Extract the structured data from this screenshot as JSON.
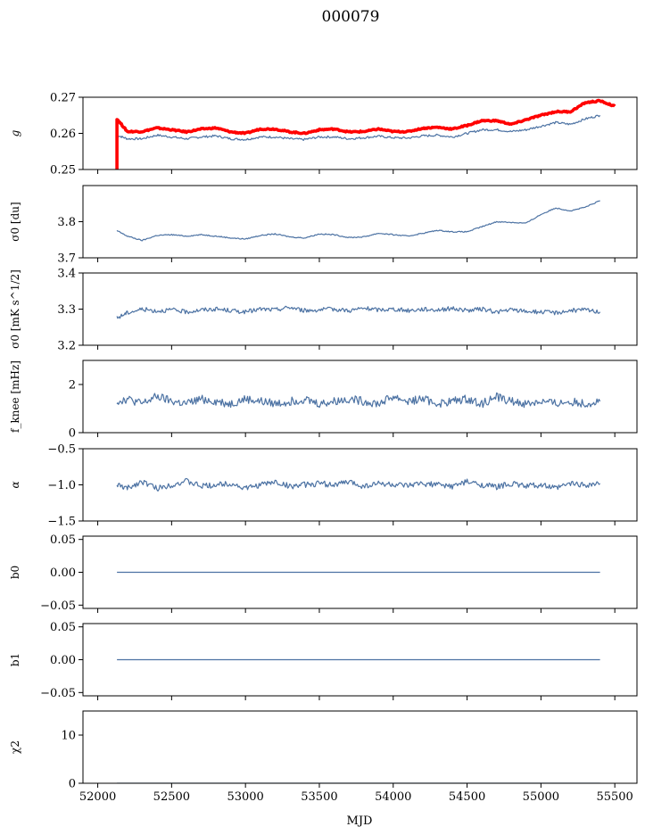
{
  "title": "000079",
  "colors": {
    "series": "#4c72a3",
    "model": "#ff0000",
    "axis": "#000000"
  },
  "chart_data": [
    {
      "type": "line",
      "ylabel": "g",
      "ylim": [
        0.25,
        0.27
      ],
      "yticks": [
        0.25,
        0.26,
        0.27
      ],
      "ytick_labels": [
        "0.25",
        "0.26",
        "0.27"
      ],
      "xlim": [
        51900,
        55650
      ],
      "series": [
        {
          "x": [
            52130,
            52200,
            52300,
            52400,
            52500,
            52600,
            52700,
            52800,
            52900,
            53000,
            53100,
            53200,
            53300,
            53400,
            53500,
            53600,
            53700,
            53800,
            53900,
            54000,
            54100,
            54200,
            54300,
            54400,
            54500,
            54600,
            54700,
            54800,
            54900,
            55000,
            55100,
            55200,
            55300,
            55400
          ],
          "y": [
            0.2595,
            0.2585,
            0.2585,
            0.2595,
            0.259,
            0.2585,
            0.259,
            0.2593,
            0.2585,
            0.2583,
            0.259,
            0.259,
            0.2585,
            0.2583,
            0.259,
            0.259,
            0.2585,
            0.2588,
            0.2592,
            0.2588,
            0.2587,
            0.2593,
            0.2595,
            0.259,
            0.26,
            0.261,
            0.261,
            0.2605,
            0.261,
            0.262,
            0.263,
            0.2625,
            0.264,
            0.265
          ]
        },
        {
          "x": [
            52130,
            52200,
            52300,
            52400,
            52500,
            52600,
            52700,
            52800,
            52900,
            53000,
            53100,
            53200,
            53300,
            53400,
            53500,
            53600,
            53700,
            53800,
            53900,
            54000,
            54100,
            54200,
            54300,
            54400,
            54500,
            54600,
            54700,
            54800,
            54900,
            55000,
            55100,
            55200,
            55300,
            55400,
            55500
          ],
          "y": [
            0.264,
            0.2605,
            0.2605,
            0.2615,
            0.261,
            0.2604,
            0.2612,
            0.2615,
            0.2604,
            0.26,
            0.2612,
            0.2612,
            0.2604,
            0.26,
            0.261,
            0.2612,
            0.2604,
            0.2605,
            0.2612,
            0.2605,
            0.2605,
            0.2614,
            0.2617,
            0.2612,
            0.2622,
            0.2635,
            0.2635,
            0.2625,
            0.2638,
            0.265,
            0.266,
            0.266,
            0.2685,
            0.269,
            0.2675
          ]
        }
      ]
    },
    {
      "type": "line",
      "ylabel": "σ0 [du]",
      "ylim": [
        3.7,
        3.9
      ],
      "yticks": [
        3.7,
        3.8
      ],
      "ytick_labels": [
        "3.7",
        "3.8"
      ],
      "xlim": [
        51900,
        55650
      ],
      "series": [
        {
          "x": [
            52130,
            52200,
            52300,
            52400,
            52500,
            52600,
            52700,
            52800,
            52900,
            53000,
            53100,
            53200,
            53300,
            53400,
            53500,
            53600,
            53700,
            53800,
            53900,
            54000,
            54100,
            54200,
            54300,
            54400,
            54500,
            54600,
            54700,
            54800,
            54900,
            55000,
            55100,
            55200,
            55300,
            55400
          ],
          "y": [
            3.775,
            3.76,
            3.748,
            3.762,
            3.764,
            3.76,
            3.764,
            3.76,
            3.755,
            3.752,
            3.762,
            3.766,
            3.758,
            3.755,
            3.766,
            3.764,
            3.756,
            3.758,
            3.768,
            3.764,
            3.76,
            3.768,
            3.776,
            3.772,
            3.772,
            3.786,
            3.8,
            3.798,
            3.796,
            3.82,
            3.838,
            3.83,
            3.84,
            3.858
          ]
        }
      ]
    },
    {
      "type": "line",
      "ylabel": "σ0 [mK s^1/2]",
      "ylim": [
        3.2,
        3.4
      ],
      "yticks": [
        3.2,
        3.3,
        3.4
      ],
      "ytick_labels": [
        "3.2",
        "3.3",
        "3.4"
      ],
      "xlim": [
        51900,
        55650
      ],
      "series": [
        {
          "x": [
            52130,
            52200,
            52300,
            52400,
            52500,
            52600,
            52700,
            52800,
            52900,
            53000,
            53100,
            53200,
            53300,
            53400,
            53500,
            53600,
            53700,
            53800,
            53900,
            54000,
            54100,
            54200,
            54300,
            54400,
            54500,
            54600,
            54700,
            54800,
            54900,
            55000,
            55100,
            55200,
            55300,
            55400
          ],
          "y": [
            3.275,
            3.29,
            3.3,
            3.295,
            3.298,
            3.292,
            3.298,
            3.3,
            3.296,
            3.292,
            3.3,
            3.298,
            3.305,
            3.296,
            3.298,
            3.3,
            3.296,
            3.302,
            3.298,
            3.3,
            3.296,
            3.3,
            3.298,
            3.302,
            3.296,
            3.3,
            3.292,
            3.298,
            3.294,
            3.292,
            3.29,
            3.296,
            3.298,
            3.292
          ]
        }
      ]
    },
    {
      "type": "line",
      "ylabel": "f_knee [mHz]",
      "ylim": [
        0,
        3
      ],
      "yticks": [
        0,
        2
      ],
      "ytick_labels": [
        "0",
        "2"
      ],
      "xlim": [
        51900,
        55650
      ],
      "series": [
        {
          "x": [
            52130,
            52200,
            52300,
            52400,
            52500,
            52600,
            52700,
            52800,
            52900,
            53000,
            53100,
            53200,
            53300,
            53400,
            53500,
            53600,
            53700,
            53800,
            53900,
            54000,
            54100,
            54200,
            54300,
            54400,
            54500,
            54600,
            54700,
            54800,
            54900,
            55000,
            55100,
            55200,
            55300,
            55400
          ],
          "y": [
            1.3,
            1.4,
            1.2,
            1.5,
            1.3,
            1.2,
            1.4,
            1.3,
            1.2,
            1.4,
            1.3,
            1.2,
            1.3,
            1.4,
            1.2,
            1.3,
            1.4,
            1.3,
            1.2,
            1.5,
            1.3,
            1.4,
            1.2,
            1.3,
            1.4,
            1.2,
            1.5,
            1.3,
            1.2,
            1.3,
            1.2,
            1.3,
            1.2,
            1.3
          ]
        }
      ]
    },
    {
      "type": "line",
      "ylabel": "α",
      "ylim": [
        -1.5,
        -0.5
      ],
      "yticks": [
        -1.5,
        -1.0,
        -0.5
      ],
      "ytick_labels": [
        "−1.5",
        "−1.0",
        "−0.5"
      ],
      "xlim": [
        51900,
        55650
      ],
      "series": [
        {
          "x": [
            52130,
            52200,
            52300,
            52400,
            52500,
            52600,
            52700,
            52800,
            52900,
            53000,
            53100,
            53200,
            53300,
            53400,
            53500,
            53600,
            53700,
            53800,
            53900,
            54000,
            54100,
            54200,
            54300,
            54400,
            54500,
            54600,
            54700,
            54800,
            54900,
            55000,
            55100,
            55200,
            55300,
            55400
          ],
          "y": [
            -1.0,
            -1.05,
            -0.95,
            -1.05,
            -1.0,
            -0.95,
            -1.02,
            -1.0,
            -0.98,
            -1.05,
            -1.0,
            -0.96,
            -1.02,
            -1.0,
            -0.98,
            -1.0,
            -0.96,
            -1.02,
            -0.98,
            -1.0,
            -1.02,
            -0.98,
            -1.0,
            -1.02,
            -0.96,
            -1.0,
            -1.03,
            -0.98,
            -1.02,
            -1.0,
            -1.05,
            -0.98,
            -1.0,
            -0.98
          ]
        }
      ]
    },
    {
      "type": "line",
      "ylabel": "b0",
      "ylim": [
        -0.055,
        0.055
      ],
      "yticks": [
        -0.05,
        0.0,
        0.05
      ],
      "ytick_labels": [
        "−0.05",
        "0.00",
        "0.05"
      ],
      "xlim": [
        51900,
        55650
      ],
      "series": [
        {
          "x": [
            52130,
            55400
          ],
          "y": [
            0.0,
            0.0
          ]
        }
      ]
    },
    {
      "type": "line",
      "ylabel": "b1",
      "ylim": [
        -0.055,
        0.055
      ],
      "yticks": [
        -0.05,
        0.0,
        0.05
      ],
      "ytick_labels": [
        "−0.05",
        "0.00",
        "0.05"
      ],
      "xlim": [
        51900,
        55650
      ],
      "series": [
        {
          "x": [
            52130,
            55400
          ],
          "y": [
            0.0,
            0.0
          ]
        }
      ]
    },
    {
      "type": "line",
      "ylabel": "χ2",
      "xlabel": "MJD",
      "ylim": [
        0,
        15
      ],
      "yticks": [
        0,
        10
      ],
      "ytick_labels": [
        "0",
        "10"
      ],
      "xlim": [
        51900,
        55650
      ],
      "xticks": [
        52000,
        52500,
        53000,
        53500,
        54000,
        54500,
        55000,
        55500
      ],
      "xtick_labels": [
        "52000",
        "52500",
        "53000",
        "53500",
        "54000",
        "54500",
        "55000",
        "55500"
      ],
      "series": [
        {
          "x": [
            52130,
            55400
          ],
          "y": [
            0.0,
            0.0
          ]
        }
      ]
    }
  ]
}
